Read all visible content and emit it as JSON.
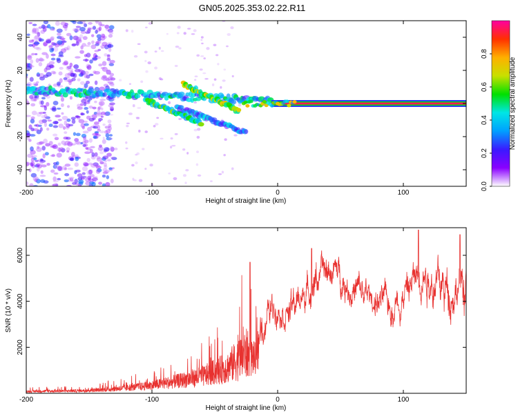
{
  "title": "GN05.2025.353.02.22.R11",
  "chart_data": [
    {
      "type": "heatmap",
      "name": "spectrogram",
      "xlabel": "Height of straight line (km)",
      "ylabel": "Frequency (Hz)",
      "xlim": [
        -200,
        150
      ],
      "ylim": [
        -50,
        50
      ],
      "xticks": [
        -200,
        -100,
        0,
        100
      ],
      "yticks": [
        -40,
        -20,
        0,
        20,
        40
      ],
      "colorbar": {
        "label": "Normalized spectral amplitude",
        "range": [
          0.0,
          1.0
        ],
        "ticks": [
          0.0,
          0.2,
          0.4,
          0.6,
          0.8
        ],
        "tick_labels": [
          "0.0",
          "0.2",
          "0.4",
          "0.6",
          "0.8"
        ],
        "colormap": [
          "#ffffff",
          "#8a00ff",
          "#3a1aff",
          "#00a0ff",
          "#00e6e6",
          "#00e000",
          "#c8e000",
          "#ffb000",
          "#ff3000",
          "#ff00a0"
        ]
      },
      "features": {
        "carrier_line": {
          "x_start": -5,
          "x_end": 150,
          "frequency": 0,
          "amplitude": 0.95
        },
        "main_streak": {
          "x_start": -200,
          "x_end": -5,
          "frequency_start": 8,
          "frequency_end": 2,
          "amplitude": 0.35
        },
        "echo_streaks": [
          {
            "x_start": -105,
            "x_end": -60,
            "frequency_start": 2,
            "frequency_end": -12,
            "amplitude": 0.5
          },
          {
            "x_start": -75,
            "x_end": -30,
            "frequency_start": 12,
            "frequency_end": -5,
            "amplitude": 0.6
          },
          {
            "x_start": -80,
            "x_end": -25,
            "frequency_start": -2,
            "frequency_end": -18,
            "amplitude": 0.3
          }
        ],
        "noise_region": {
          "x_start": -200,
          "x_end": -140,
          "amplitude": 0.2
        }
      }
    },
    {
      "type": "line",
      "name": "snr",
      "xlabel": "Height of straight line (km)",
      "ylabel": "SNR (10 * v/v)",
      "xlim": [
        -200,
        150
      ],
      "ylim": [
        0,
        7200
      ],
      "xticks": [
        -200,
        -100,
        0,
        100
      ],
      "yticks": [
        2000,
        4000,
        6000
      ],
      "color": "#e8312f",
      "envelope": [
        {
          "x": -200,
          "base": 100,
          "spread": 150
        },
        {
          "x": -150,
          "base": 150,
          "spread": 200
        },
        {
          "x": -120,
          "base": 300,
          "spread": 400
        },
        {
          "x": -100,
          "base": 450,
          "spread": 600
        },
        {
          "x": -80,
          "base": 700,
          "spread": 900
        },
        {
          "x": -60,
          "base": 900,
          "spread": 1300
        },
        {
          "x": -40,
          "base": 1400,
          "spread": 2000
        },
        {
          "x": -25,
          "base": 2000,
          "spread": 3200
        },
        {
          "x": -15,
          "base": 3000,
          "spread": 1500
        },
        {
          "x": 0,
          "base": 3900,
          "spread": 900
        },
        {
          "x": 10,
          "base": 3600,
          "spread": 1200
        },
        {
          "x": 20,
          "base": 4200,
          "spread": 900
        },
        {
          "x": 30,
          "base": 5000,
          "spread": 1200
        },
        {
          "x": 45,
          "base": 5400,
          "spread": 900
        },
        {
          "x": 60,
          "base": 4500,
          "spread": 1200
        },
        {
          "x": 75,
          "base": 4100,
          "spread": 1000
        },
        {
          "x": 90,
          "base": 3800,
          "spread": 1100
        },
        {
          "x": 105,
          "base": 4600,
          "spread": 1300
        },
        {
          "x": 115,
          "base": 5500,
          "spread": 1400
        },
        {
          "x": 130,
          "base": 4500,
          "spread": 1500
        },
        {
          "x": 150,
          "base": 4800,
          "spread": 1800
        }
      ],
      "peaks": [
        {
          "x": 112,
          "y": 7100
        },
        {
          "x": 145,
          "y": 6900
        },
        {
          "x": 27,
          "y": 6300
        },
        {
          "x": -22,
          "y": 5700
        }
      ]
    }
  ]
}
